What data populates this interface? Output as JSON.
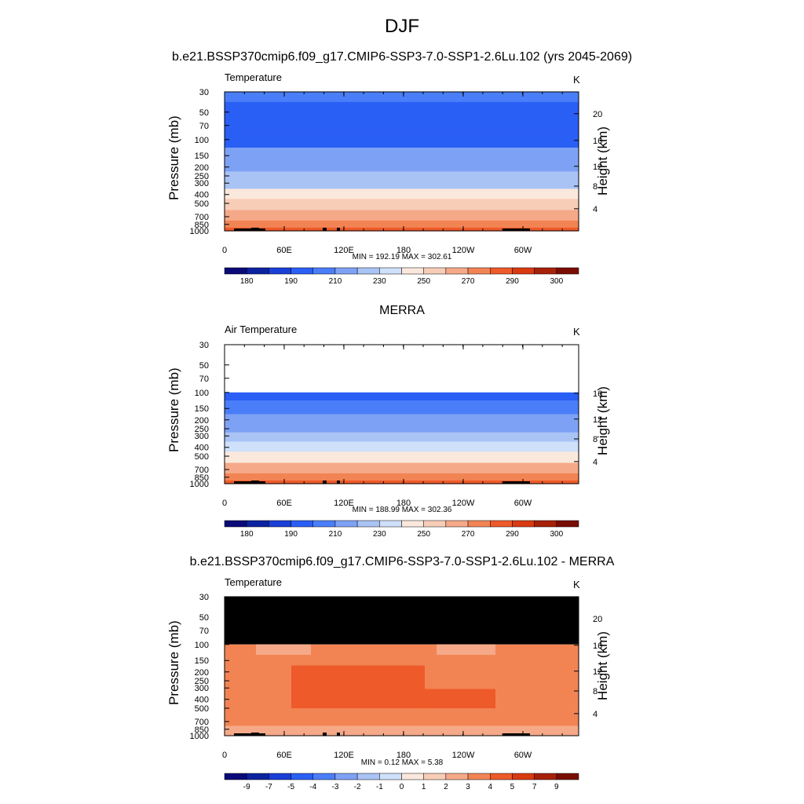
{
  "figure": {
    "title": "DJF"
  },
  "colors": {
    "temp_palette": [
      "#0a0a78",
      "#0c23a0",
      "#1a3fd8",
      "#2a5ff5",
      "#4a7ef8",
      "#7da2f5",
      "#a9c3f5",
      "#cfe0fb",
      "#fbe8dc",
      "#f8cdb8",
      "#f5a988",
      "#f28454",
      "#ee5a2a",
      "#d93a12",
      "#a72108",
      "#7a0d03"
    ],
    "diff_palette": [
      "#0a0a78",
      "#0c23a0",
      "#1a3fd8",
      "#2a5ff5",
      "#4a7ef8",
      "#7da2f5",
      "#a9c3f5",
      "#cfe0fb",
      "#fbe8dc",
      "#f8cdb8",
      "#f5a988",
      "#f28454",
      "#ee5a2a",
      "#d93a12",
      "#a72108",
      "#7a0d03"
    ],
    "missing": "#000000"
  },
  "panels": [
    {
      "title": "b.e21.BSSP370cmip6.f09_g17.CMIP6-SSP3-7.0-SSP1-2.6Lu.102 (yrs 2045-2069)",
      "left_label": "Temperature",
      "right_label": "K",
      "y_left_title": "Pressure (mb)",
      "y_right_title": "Height (km)",
      "stats": "MIN = 192.19  MAX = 302.61"
    },
    {
      "title": "MERRA",
      "left_label": "Air Temperature",
      "right_label": "K",
      "y_left_title": "Pressure (mb)",
      "y_right_title": "Height (km)",
      "stats": "MIN = 188.99  MAX = 302.36"
    },
    {
      "title": "b.e21.BSSP370cmip6.f09_g17.CMIP6-SSP3-7.0-SSP1-2.6Lu.102 - MERRA",
      "left_label": "Temperature",
      "right_label": "K",
      "y_left_title": "Pressure (mb)",
      "y_right_title": "Height (km)",
      "stats": "MIN =   0.12  MAX =   5.38"
    }
  ],
  "chart_data": [
    {
      "type": "heatmap",
      "title": "b.e21.BSSP370cmip6.f09_g17.CMIP6-SSP3-7.0-SSP1-2.6Lu.102 (yrs 2045-2069)",
      "variable": "Temperature",
      "units": "K",
      "xlabel": "",
      "ylabel": "Pressure (mb)",
      "ylabel_right": "Height (km)",
      "x_ticks": [
        "0",
        "60E",
        "120E",
        "180",
        "120W",
        "60W"
      ],
      "y_ticks": [
        "30",
        "50",
        "70",
        "100",
        "150",
        "200",
        "250",
        "300",
        "400",
        "500",
        "700",
        "850",
        "1000"
      ],
      "y_right_ticks": [
        "20",
        "16",
        "12",
        "8",
        "4"
      ],
      "y_scale": "log",
      "ylim": [
        1000,
        30
      ],
      "colorbar_labels": [
        "180",
        "190",
        "210",
        "230",
        "250",
        "270",
        "290",
        "300"
      ],
      "min": 192.19,
      "max": 302.61,
      "profile": {
        "pressure": [
          30,
          50,
          70,
          100,
          150,
          200,
          250,
          300,
          400,
          500,
          700,
          850,
          1000
        ],
        "temperature": [
          205,
          197,
          196,
          196,
          210,
          217,
          222,
          229,
          242,
          252,
          267,
          277,
          285
        ]
      }
    },
    {
      "type": "heatmap",
      "title": "MERRA",
      "variable": "Air Temperature",
      "units": "K",
      "xlabel": "",
      "ylabel": "Pressure (mb)",
      "ylabel_right": "Height (km)",
      "x_ticks": [
        "0",
        "60E",
        "120E",
        "180",
        "120W",
        "60W"
      ],
      "y_ticks": [
        "30",
        "50",
        "70",
        "100",
        "150",
        "200",
        "250",
        "300",
        "400",
        "500",
        "700",
        "850",
        "1000"
      ],
      "y_right_ticks": [
        "16",
        "12",
        "8",
        "4"
      ],
      "y_scale": "log",
      "ylim": [
        1000,
        30
      ],
      "colorbar_labels": [
        "180",
        "190",
        "210",
        "230",
        "250",
        "270",
        "290",
        "300"
      ],
      "min": 188.99,
      "max": 302.36,
      "profile": {
        "pressure": [
          100,
          150,
          200,
          250,
          300,
          400,
          500,
          700,
          850,
          1000
        ],
        "temperature": [
          194,
          207,
          214,
          219,
          226,
          239,
          249,
          264,
          274,
          282
        ]
      }
    },
    {
      "type": "heatmap",
      "title": "b.e21.BSSP370cmip6.f09_g17.CMIP6-SSP3-7.0-SSP1-2.6Lu.102 - MERRA",
      "variable": "Temperature",
      "units": "K",
      "xlabel": "",
      "ylabel": "Pressure (mb)",
      "ylabel_right": "Height (km)",
      "x_ticks": [
        "0",
        "60E",
        "120E",
        "180",
        "120W",
        "60W"
      ],
      "y_ticks": [
        "30",
        "50",
        "70",
        "100",
        "150",
        "200",
        "250",
        "300",
        "400",
        "500",
        "700",
        "850",
        "1000"
      ],
      "y_right_ticks": [
        "20",
        "16",
        "12",
        "8",
        "4"
      ],
      "y_scale": "log",
      "ylim": [
        1000,
        30
      ],
      "colorbar_labels": [
        "-9",
        "-7",
        "-5",
        "-4",
        "-3",
        "-2",
        "-1",
        "0",
        "1",
        "2",
        "3",
        "4",
        "5",
        "7",
        "9"
      ],
      "min": 0.12,
      "max": 5.38,
      "missing_above_pressure": 100
    }
  ]
}
